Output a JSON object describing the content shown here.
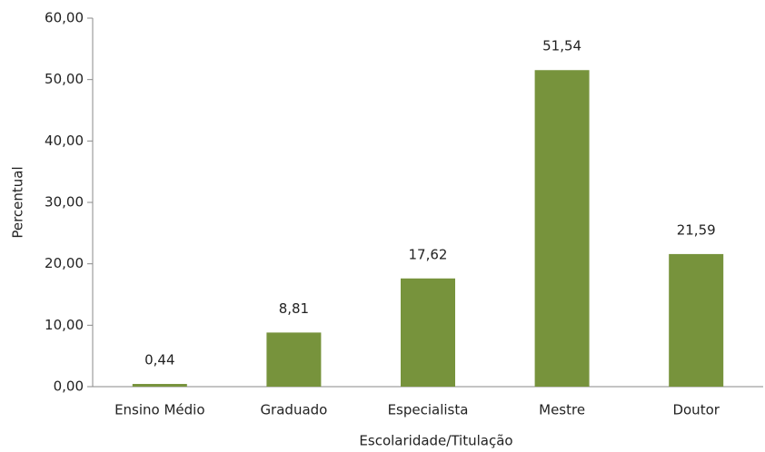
{
  "chart_data": {
    "type": "bar",
    "x_label": "Escolaridade/Titulação",
    "y_label": "Percentual",
    "categories": [
      "Ensino Médio",
      "Graduado",
      "Especialista",
      "Mestre",
      "Doutor"
    ],
    "values": [
      0.44,
      8.81,
      17.62,
      51.54,
      21.59
    ],
    "value_labels": [
      "0,44",
      "8,81",
      "17,62",
      "51,54",
      "21,59"
    ],
    "color": "#77933c",
    "ylim": [
      0,
      60
    ],
    "yticks": [
      {
        "value": 0,
        "label": "0,00"
      },
      {
        "value": 10,
        "label": "10,00"
      },
      {
        "value": 20,
        "label": "20,00"
      },
      {
        "value": 30,
        "label": "30,00"
      },
      {
        "value": 40,
        "label": "40,00"
      },
      {
        "value": 50,
        "label": "50,00"
      },
      {
        "value": 60,
        "label": "60,00"
      }
    ],
    "grid": false
  }
}
